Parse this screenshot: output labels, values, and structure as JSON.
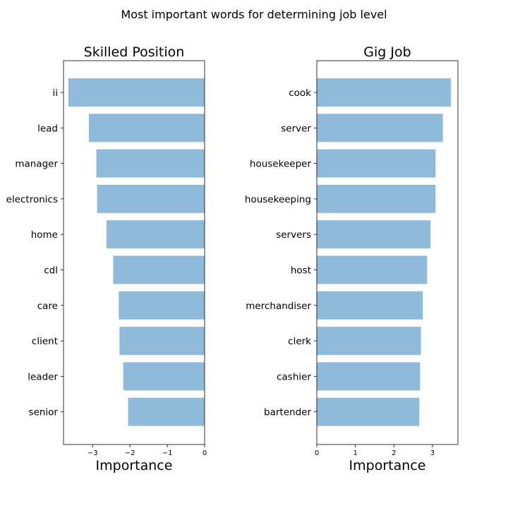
{
  "figure": {
    "title": "Most important words for determining job level"
  },
  "chart_data": [
    {
      "type": "bar",
      "orientation": "horizontal",
      "title": "Skilled Position",
      "xlabel": "Importance",
      "ylabel": "",
      "categories": [
        "ii",
        "lead",
        "manager",
        "electronics",
        "home",
        "cdl",
        "care",
        "client",
        "leader",
        "senior"
      ],
      "values": [
        -3.65,
        -3.1,
        -2.9,
        -2.88,
        -2.63,
        -2.45,
        -2.3,
        -2.28,
        -2.18,
        -2.05
      ],
      "xlim": [
        -3.78,
        0
      ],
      "xticks": [
        -3,
        -2,
        -1,
        0
      ],
      "xtick_labels": [
        "−3",
        "−2",
        "−1",
        "0"
      ],
      "bar_color": "#8fbad9",
      "grid": false
    },
    {
      "type": "bar",
      "orientation": "horizontal",
      "title": "Gig Job",
      "xlabel": "Importance",
      "ylabel": "",
      "categories": [
        "cook",
        "server",
        "housekeeper",
        "housekeeping",
        "servers",
        "host",
        "merchandiser",
        "clerk",
        "cashier",
        "bartender"
      ],
      "values": [
        3.48,
        3.27,
        3.08,
        3.08,
        2.95,
        2.86,
        2.75,
        2.7,
        2.68,
        2.66
      ],
      "xlim": [
        0,
        3.66
      ],
      "xticks": [
        0,
        1,
        2,
        3
      ],
      "xtick_labels": [
        "0",
        "1",
        "2",
        "3"
      ],
      "bar_color": "#8fbad9",
      "grid": false
    }
  ]
}
